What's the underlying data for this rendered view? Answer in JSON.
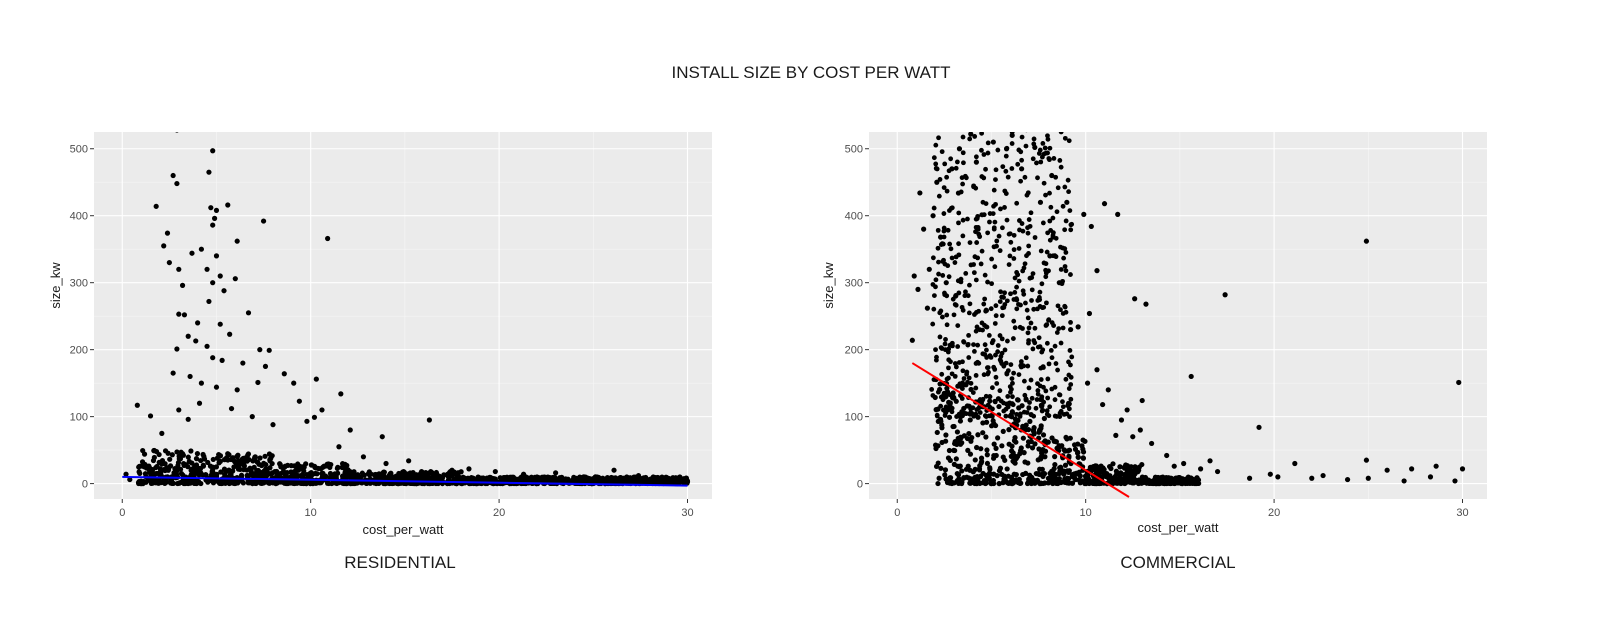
{
  "title": "INSTALL SIZE BY COST PER WATT",
  "colors": {
    "panel_background": "#ebebeb",
    "grid": "#ffffff",
    "points": "#000000"
  },
  "chart_data": [
    {
      "type": "scatter",
      "caption": "RESIDENTIAL",
      "xlabel": "cost_per_watt",
      "ylabel": "size_kw",
      "xlim": [
        -1.5,
        31.3
      ],
      "ylim": [
        -23,
        525
      ],
      "xticks": [
        0,
        10,
        20,
        30
      ],
      "yticks": [
        0,
        100,
        200,
        300,
        400,
        500
      ],
      "grid": true,
      "trend_line": {
        "color": "#0000ff",
        "x": [
          0,
          30
        ],
        "y": [
          10,
          -3
        ]
      },
      "points": [
        [
          2.9,
          528
        ],
        [
          4.8,
          497
        ],
        [
          2.7,
          460
        ],
        [
          2.9,
          448
        ],
        [
          4.6,
          465
        ],
        [
          4.7,
          412
        ],
        [
          5.0,
          408
        ],
        [
          5.6,
          416
        ],
        [
          4.9,
          396
        ],
        [
          4.8,
          386
        ],
        [
          7.5,
          392
        ],
        [
          1.8,
          414
        ],
        [
          2.4,
          374
        ],
        [
          2.2,
          355
        ],
        [
          10.9,
          366
        ],
        [
          6.1,
          362
        ],
        [
          4.2,
          350
        ],
        [
          3.7,
          344
        ],
        [
          5.0,
          340
        ],
        [
          4.5,
          320
        ],
        [
          4.8,
          300
        ],
        [
          5.2,
          310
        ],
        [
          6.0,
          306
        ],
        [
          2.5,
          330
        ],
        [
          3.0,
          320
        ],
        [
          5.4,
          288
        ],
        [
          4.6,
          272
        ],
        [
          3.2,
          296
        ],
        [
          6.7,
          255
        ],
        [
          3.0,
          253
        ],
        [
          3.3,
          252
        ],
        [
          4.0,
          240
        ],
        [
          5.2,
          238
        ],
        [
          5.7,
          223
        ],
        [
          3.5,
          220
        ],
        [
          3.9,
          213
        ],
        [
          4.5,
          205
        ],
        [
          7.3,
          200
        ],
        [
          7.8,
          199
        ],
        [
          2.9,
          201
        ],
        [
          4.8,
          188
        ],
        [
          5.3,
          184
        ],
        [
          7.6,
          175
        ],
        [
          6.4,
          180
        ],
        [
          8.6,
          164
        ],
        [
          9.1,
          150
        ],
        [
          10.3,
          156
        ],
        [
          11.6,
          134
        ],
        [
          2.7,
          165
        ],
        [
          3.6,
          160
        ],
        [
          4.2,
          150
        ],
        [
          5.0,
          144
        ],
        [
          6.1,
          140
        ],
        [
          7.2,
          151
        ],
        [
          9.4,
          123
        ],
        [
          10.6,
          110
        ],
        [
          12.1,
          80
        ],
        [
          13.8,
          70
        ],
        [
          16.3,
          95
        ],
        [
          0.8,
          117
        ],
        [
          1.5,
          101
        ],
        [
          2.1,
          75
        ],
        [
          3.0,
          110
        ],
        [
          3.5,
          96
        ],
        [
          4.1,
          120
        ],
        [
          5.8,
          112
        ],
        [
          6.9,
          100
        ],
        [
          8.0,
          88
        ],
        [
          9.8,
          93
        ],
        [
          10.2,
          99
        ],
        [
          11.5,
          55
        ],
        [
          12.8,
          40
        ],
        [
          14.0,
          30
        ],
        [
          15.2,
          34
        ],
        [
          17.5,
          20
        ],
        [
          18.4,
          22
        ],
        [
          19.8,
          18
        ],
        [
          21.3,
          14
        ],
        [
          23.0,
          16
        ],
        [
          24.5,
          10
        ],
        [
          26.1,
          20
        ],
        [
          27.4,
          12
        ],
        [
          28.9,
          9
        ],
        [
          29.8,
          5
        ],
        [
          0.2,
          14
        ],
        [
          0.4,
          6
        ],
        [
          25.5,
          8
        ],
        [
          22.1,
          9
        ]
      ],
      "dense_band": [
        {
          "x_range": [
            0.8,
            4
          ],
          "y_max": 50
        },
        {
          "x_range": [
            4,
            8
          ],
          "y_max": 45
        },
        {
          "x_range": [
            8,
            12
          ],
          "y_max": 30
        },
        {
          "x_range": [
            12,
            18
          ],
          "y_max": 18
        },
        {
          "x_range": [
            18,
            30
          ],
          "y_max": 10
        }
      ]
    },
    {
      "type": "scatter",
      "caption": "COMMERCIAL",
      "xlabel": "cost_per_watt",
      "ylabel": "size_kw",
      "xlim": [
        -1.5,
        31.3
      ],
      "ylim": [
        -23,
        525
      ],
      "xticks": [
        0,
        10,
        20,
        30
      ],
      "yticks": [
        0,
        100,
        200,
        300,
        400,
        500
      ],
      "grid": true,
      "trend_line": {
        "color": "#ff0000",
        "x": [
          0.8,
          12.3
        ],
        "y": [
          180,
          -20
        ]
      },
      "points": [
        [
          24.9,
          362
        ],
        [
          29.8,
          151
        ],
        [
          17.4,
          282
        ],
        [
          15.6,
          160
        ],
        [
          19.2,
          84
        ],
        [
          13.2,
          268
        ],
        [
          12.6,
          276
        ],
        [
          11.7,
          402
        ],
        [
          11.0,
          418
        ],
        [
          10.3,
          384
        ],
        [
          9.9,
          402
        ],
        [
          10.6,
          318
        ],
        [
          10.2,
          254
        ],
        [
          9.6,
          234
        ],
        [
          0.9,
          310
        ],
        [
          1.1,
          290
        ],
        [
          1.4,
          380
        ],
        [
          1.2,
          434
        ],
        [
          1.6,
          262
        ],
        [
          0.8,
          214
        ],
        [
          24.9,
          35
        ],
        [
          25.0,
          8
        ],
        [
          26.0,
          20
        ],
        [
          27.3,
          22
        ],
        [
          28.6,
          26
        ],
        [
          30.0,
          22
        ],
        [
          29.6,
          4
        ],
        [
          21.1,
          30
        ],
        [
          22.6,
          12
        ],
        [
          20.2,
          10
        ],
        [
          18.7,
          8
        ],
        [
          23.9,
          6
        ],
        [
          14.3,
          42
        ],
        [
          13.5,
          60
        ],
        [
          12.9,
          80
        ],
        [
          12.5,
          70
        ],
        [
          11.9,
          95
        ],
        [
          15.2,
          30
        ],
        [
          16.1,
          22
        ],
        [
          17.0,
          18
        ],
        [
          16.6,
          34
        ],
        [
          19.8,
          14
        ],
        [
          13.0,
          124
        ],
        [
          12.2,
          110
        ],
        [
          11.2,
          140
        ],
        [
          10.6,
          170
        ],
        [
          10.1,
          150
        ],
        [
          9.2,
          230
        ],
        [
          8.6,
          300
        ],
        [
          8.1,
          340
        ],
        [
          7.6,
          420
        ],
        [
          6.6,
          470
        ],
        [
          5.8,
          500
        ],
        [
          5.1,
          510
        ],
        [
          4.6,
          530
        ],
        [
          3.9,
          522
        ],
        [
          3.3,
          500
        ],
        [
          2.9,
          470
        ],
        [
          2.1,
          450
        ],
        [
          1.9,
          400
        ],
        [
          2.3,
          368
        ],
        [
          1.7,
          320
        ],
        [
          2.6,
          300
        ],
        [
          3.1,
          280
        ],
        [
          7.3,
          502
        ],
        [
          8.2,
          460
        ],
        [
          6.1,
          520
        ],
        [
          4.2,
          480
        ],
        [
          9.0,
          420
        ],
        [
          10.9,
          118
        ],
        [
          11.6,
          72
        ],
        [
          14.7,
          26
        ],
        [
          22.0,
          8
        ],
        [
          26.9,
          4
        ],
        [
          28.3,
          10
        ]
      ],
      "dense_band": [
        {
          "x_range": [
            2,
            4
          ],
          "y_max": 160
        },
        {
          "x_range": [
            4,
            8
          ],
          "y_max": 130
        },
        {
          "x_range": [
            8,
            10
          ],
          "y_max": 70
        },
        {
          "x_range": [
            10,
            13
          ],
          "y_max": 30
        },
        {
          "x_range": [
            13,
            16
          ],
          "y_max": 10
        }
      ],
      "cloud": {
        "x_range": [
          1.8,
          9.3
        ],
        "y_range": [
          100,
          530
        ]
      }
    }
  ]
}
